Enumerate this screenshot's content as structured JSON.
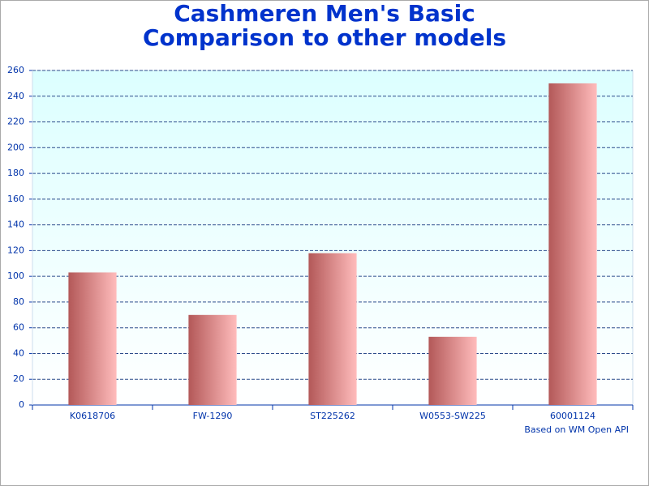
{
  "chart_data": {
    "type": "bar",
    "title": [
      "Cashmeren Men's Basic",
      "Comparison to other models"
    ],
    "categories": [
      "K0618706",
      "FW-1290",
      "ST225262",
      "W0553-SW225",
      "60001124"
    ],
    "values": [
      103,
      70,
      118,
      53,
      250
    ],
    "ylim": [
      0,
      260
    ],
    "yticks": [
      0,
      20,
      40,
      60,
      80,
      100,
      120,
      140,
      160,
      180,
      200,
      220,
      240,
      260
    ],
    "grid": true,
    "annotation": "Based on WM Open API"
  }
}
